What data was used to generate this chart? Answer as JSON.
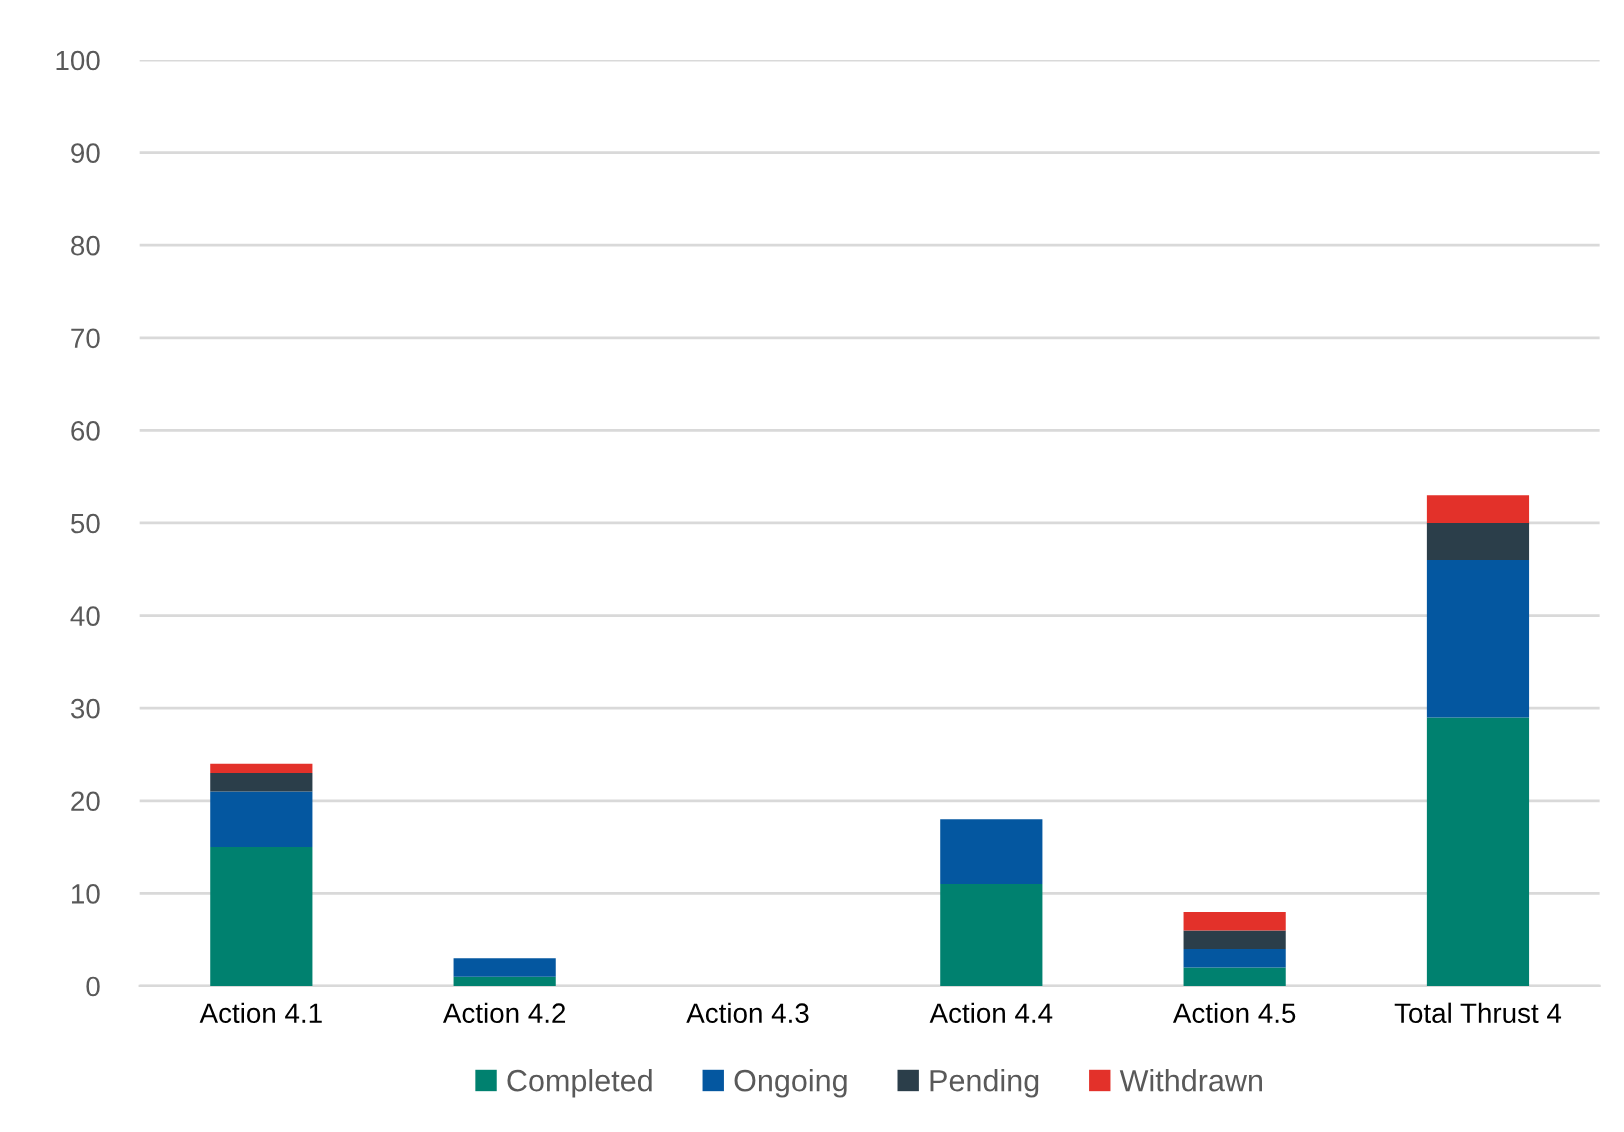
{
  "chart_data": {
    "type": "bar",
    "stacked": true,
    "categories": [
      "Action 4.1",
      "Action 4.2",
      "Action 4.3",
      "Action 4.4",
      "Action 4.5",
      "Total Thrust 4"
    ],
    "series": [
      {
        "name": "Completed",
        "color": "#00816f",
        "values": [
          15,
          1,
          0,
          11,
          2,
          29
        ]
      },
      {
        "name": "Ongoing",
        "color": "#0457a0",
        "values": [
          6,
          2,
          0,
          7,
          2,
          17
        ]
      },
      {
        "name": "Pending",
        "color": "#2b3e4a",
        "values": [
          2,
          0,
          0,
          0,
          2,
          4
        ]
      },
      {
        "name": "Withdrawn",
        "color": "#e3312a",
        "values": [
          1,
          0,
          0,
          0,
          2,
          3
        ]
      }
    ],
    "ylim": [
      0,
      100
    ],
    "yticks": [
      0,
      10,
      20,
      30,
      40,
      50,
      60,
      70,
      80,
      90,
      100
    ],
    "grid": "y",
    "legend": "bottom"
  }
}
